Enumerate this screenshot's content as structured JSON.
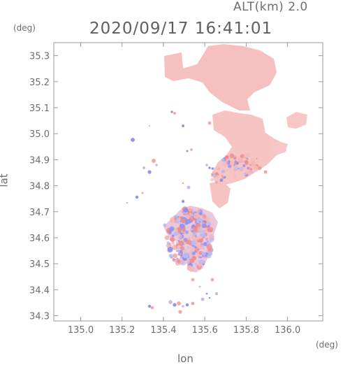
{
  "header": {
    "altitude_label": "ALT(km)  2.0",
    "timestamp": "2020/09/17  16:41:01"
  },
  "axes": {
    "xlabel": "lon",
    "ylabel": "lat",
    "x_unit": "(deg)",
    "y_unit": "(deg)",
    "xlim": [
      134.87,
      136.17
    ],
    "ylim": [
      34.28,
      35.35
    ],
    "x_ticks": [
      "135.0",
      "135.2",
      "135.4",
      "135.6",
      "135.8",
      "136.0"
    ],
    "y_ticks": [
      "34.3",
      "34.4",
      "34.5",
      "34.6",
      "34.7",
      "34.8",
      "34.9",
      "35.0",
      "35.1",
      "35.2",
      "35.3"
    ]
  },
  "colors": {
    "positive": "#f4b8b8",
    "negative": "#b9b9f5",
    "frame": "#9a9a9a"
  }
}
